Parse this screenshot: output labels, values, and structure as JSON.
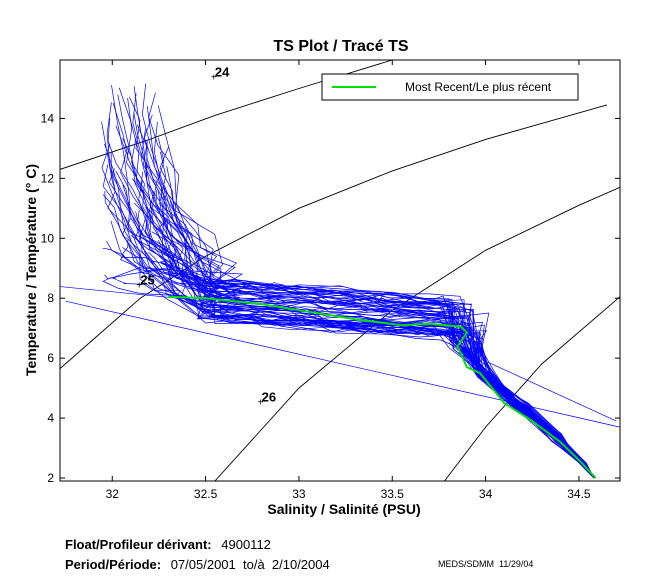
{
  "chart_data": {
    "type": "line",
    "title": "TS Plot / Tracé TS",
    "xlabel": "Salinity / Salinité (PSU)",
    "ylabel": "Temperature / Température (° C)",
    "xlim": [
      31.72,
      34.72
    ],
    "ylim": [
      1.9,
      15.95
    ],
    "xticks": [
      32,
      32.5,
      33,
      33.5,
      34,
      34.5
    ],
    "xtick_labels": [
      "32",
      "32.5",
      "33",
      "33.5",
      "34",
      "34.5"
    ],
    "yticks": [
      2,
      4,
      6,
      8,
      10,
      12,
      14
    ],
    "ytick_labels": [
      "2",
      "4",
      "6",
      "8",
      "10",
      "12",
      "14"
    ],
    "grid": false,
    "legend": {
      "position": "top-right",
      "entries": [
        "Most Recent/Le plus récent"
      ]
    },
    "colors": {
      "historical": "#0000ff",
      "most_recent": "#00dd00",
      "isopycnal": "#000000"
    },
    "isopycnals": [
      {
        "label": "24",
        "label_at": [
          32.55,
          15.4
        ],
        "points": [
          [
            31.72,
            12.3
          ],
          [
            32.2,
            13.3
          ],
          [
            32.55,
            14.1
          ],
          [
            33.0,
            15.0
          ],
          [
            33.5,
            15.95
          ]
        ]
      },
      {
        "label": "25",
        "label_at": [
          32.15,
          8.45
        ],
        "points": [
          [
            31.72,
            5.65
          ],
          [
            32.15,
            8.0
          ],
          [
            32.5,
            9.4
          ],
          [
            33.0,
            11.0
          ],
          [
            33.5,
            12.25
          ],
          [
            34.0,
            13.3
          ],
          [
            34.65,
            14.45
          ]
        ]
      },
      {
        "label": "26",
        "label_at": [
          32.8,
          4.55
        ],
        "points": [
          [
            32.55,
            1.9
          ],
          [
            33.0,
            5.0
          ],
          [
            33.5,
            7.6
          ],
          [
            34.0,
            9.6
          ],
          [
            34.5,
            11.1
          ],
          [
            34.72,
            11.7
          ]
        ]
      },
      {
        "label": "",
        "label_at": null,
        "points": [
          [
            33.78,
            1.9
          ],
          [
            34.0,
            3.7
          ],
          [
            34.3,
            5.8
          ],
          [
            34.72,
            8.05
          ]
        ]
      }
    ],
    "series": [
      {
        "name": "Most Recent/Le plus récent",
        "x": [
          32.3,
          32.5,
          32.8,
          33.1,
          33.3,
          33.55,
          33.7,
          33.87,
          33.9,
          33.85,
          33.9,
          33.97,
          34.1,
          34.25,
          34.4,
          34.5,
          34.59
        ],
        "y": [
          8.05,
          8.0,
          7.8,
          7.5,
          7.3,
          7.1,
          7.15,
          7.05,
          6.85,
          6.4,
          5.7,
          5.5,
          4.5,
          3.9,
          3.2,
          2.6,
          2.0
        ]
      },
      {
        "name": "Historical profiles",
        "values": []
      }
    ]
  },
  "legend_label": "Most Recent/Le plus récent",
  "footer": {
    "float_label": "Float/Profileur dérivant:",
    "float_value": "4900112",
    "period_label": "Period/Période:",
    "period_value": "07/05/2001  to/à  2/10/2004",
    "meds": "MEDS/SDMM  11/29/04"
  }
}
